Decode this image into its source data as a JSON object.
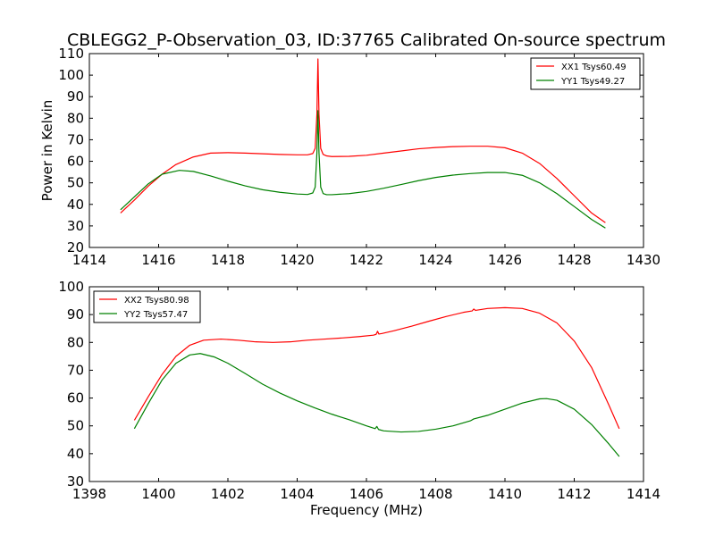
{
  "chart_data": [
    {
      "type": "line",
      "title": "CBLEGG2_P-Observation_03, ID:37765 Calibrated On-source spectrum",
      "xlabel": "",
      "ylabel": "Power in Kelvin",
      "xlim": [
        1414,
        1430
      ],
      "ylim": [
        20,
        110
      ],
      "x_ticks": [
        1414,
        1416,
        1418,
        1420,
        1422,
        1424,
        1426,
        1428,
        1430
      ],
      "y_ticks": [
        20,
        30,
        40,
        50,
        60,
        70,
        80,
        90,
        100,
        110
      ],
      "grid": false,
      "legend_position": "top-right",
      "series": [
        {
          "name": "XX1 Tsys60.49",
          "color": "#ff0000",
          "x": [
            1414.9,
            1415.3,
            1415.7,
            1416.1,
            1416.5,
            1417.0,
            1417.5,
            1418.0,
            1418.5,
            1419.0,
            1419.5,
            1420.0,
            1420.3,
            1420.45,
            1420.52,
            1420.57,
            1420.6,
            1420.63,
            1420.68,
            1420.75,
            1420.85,
            1421.0,
            1421.5,
            1422.0,
            1422.5,
            1423.0,
            1423.5,
            1424.0,
            1424.5,
            1425.0,
            1425.5,
            1426.0,
            1426.5,
            1427.0,
            1427.5,
            1428.0,
            1428.5,
            1428.9
          ],
          "values": [
            36.0,
            42.0,
            48.5,
            54.0,
            58.5,
            62.0,
            63.8,
            64.0,
            63.8,
            63.5,
            63.2,
            63.0,
            63.0,
            63.6,
            66.0,
            82.0,
            107.5,
            82.0,
            66.0,
            63.2,
            62.5,
            62.2,
            62.3,
            62.8,
            63.8,
            64.8,
            65.8,
            66.4,
            66.8,
            67.0,
            67.0,
            66.3,
            63.8,
            59.0,
            52.0,
            44.0,
            36.0,
            31.5
          ]
        },
        {
          "name": "YY1 Tsys49.27",
          "color": "#008000",
          "x": [
            1414.9,
            1415.3,
            1415.7,
            1416.1,
            1416.6,
            1417.0,
            1417.5,
            1418.0,
            1418.5,
            1419.0,
            1419.5,
            1420.0,
            1420.3,
            1420.45,
            1420.52,
            1420.57,
            1420.6,
            1420.63,
            1420.68,
            1420.75,
            1420.85,
            1421.0,
            1421.5,
            1422.0,
            1422.5,
            1423.0,
            1423.5,
            1424.0,
            1424.5,
            1425.0,
            1425.5,
            1426.0,
            1426.5,
            1427.0,
            1427.5,
            1428.0,
            1428.5,
            1428.9
          ],
          "values": [
            37.5,
            43.5,
            49.5,
            54.0,
            55.8,
            55.3,
            53.2,
            50.8,
            48.6,
            46.8,
            45.6,
            44.8,
            44.6,
            45.3,
            48.0,
            64.0,
            83.5,
            64.0,
            48.0,
            45.0,
            44.5,
            44.5,
            45.0,
            46.0,
            47.5,
            49.2,
            51.0,
            52.5,
            53.6,
            54.3,
            54.8,
            54.8,
            53.5,
            50.0,
            45.0,
            39.0,
            33.0,
            29.0
          ]
        }
      ]
    },
    {
      "type": "line",
      "title": "",
      "xlabel": "Frequency (MHz)",
      "ylabel": "",
      "xlim": [
        1398,
        1414
      ],
      "ylim": [
        30,
        100
      ],
      "x_ticks": [
        1398,
        1400,
        1402,
        1404,
        1406,
        1408,
        1410,
        1412,
        1414
      ],
      "y_ticks": [
        30,
        40,
        50,
        60,
        70,
        80,
        90,
        100
      ],
      "grid": false,
      "legend_position": "top-left",
      "series": [
        {
          "name": "XX2 Tsys80.98",
          "color": "#ff0000",
          "x": [
            1399.3,
            1399.7,
            1400.1,
            1400.5,
            1400.9,
            1401.3,
            1401.8,
            1402.3,
            1402.8,
            1403.3,
            1403.8,
            1404.3,
            1404.8,
            1405.3,
            1405.8,
            1406.2,
            1406.28,
            1406.32,
            1406.36,
            1406.45,
            1406.8,
            1407.3,
            1407.8,
            1408.3,
            1408.8,
            1409.05,
            1409.1,
            1409.15,
            1409.5,
            1410.0,
            1410.5,
            1411.0,
            1411.5,
            1412.0,
            1412.5,
            1413.0,
            1413.3
          ],
          "values": [
            52.0,
            60.5,
            68.5,
            75.0,
            79.0,
            80.8,
            81.2,
            80.8,
            80.2,
            80.0,
            80.2,
            80.8,
            81.2,
            81.6,
            82.1,
            82.6,
            82.9,
            84.0,
            83.0,
            83.2,
            84.2,
            85.8,
            87.6,
            89.3,
            90.8,
            91.3,
            92.0,
            91.5,
            92.2,
            92.5,
            92.2,
            90.5,
            87.0,
            80.5,
            71.0,
            57.5,
            49.0
          ]
        },
        {
          "name": "YY2 Tsys57.47",
          "color": "#008000",
          "x": [
            1399.3,
            1399.7,
            1400.1,
            1400.5,
            1400.9,
            1401.2,
            1401.6,
            1402.0,
            1402.5,
            1403.0,
            1403.5,
            1404.0,
            1404.5,
            1405.0,
            1405.5,
            1406.0,
            1406.25,
            1406.3,
            1406.35,
            1406.5,
            1407.0,
            1407.5,
            1408.0,
            1408.5,
            1409.0,
            1409.1,
            1409.5,
            1410.0,
            1410.5,
            1411.0,
            1411.2,
            1411.5,
            1412.0,
            1412.5,
            1413.0,
            1413.3
          ],
          "values": [
            49.0,
            58.0,
            66.5,
            72.5,
            75.5,
            76.0,
            74.8,
            72.5,
            68.8,
            65.0,
            61.8,
            59.0,
            56.5,
            54.2,
            52.2,
            50.0,
            49.0,
            49.8,
            48.7,
            48.2,
            47.8,
            48.0,
            48.8,
            50.0,
            51.8,
            52.5,
            53.8,
            56.0,
            58.2,
            59.7,
            59.8,
            59.2,
            56.0,
            50.5,
            43.5,
            39.0
          ]
        }
      ]
    }
  ]
}
